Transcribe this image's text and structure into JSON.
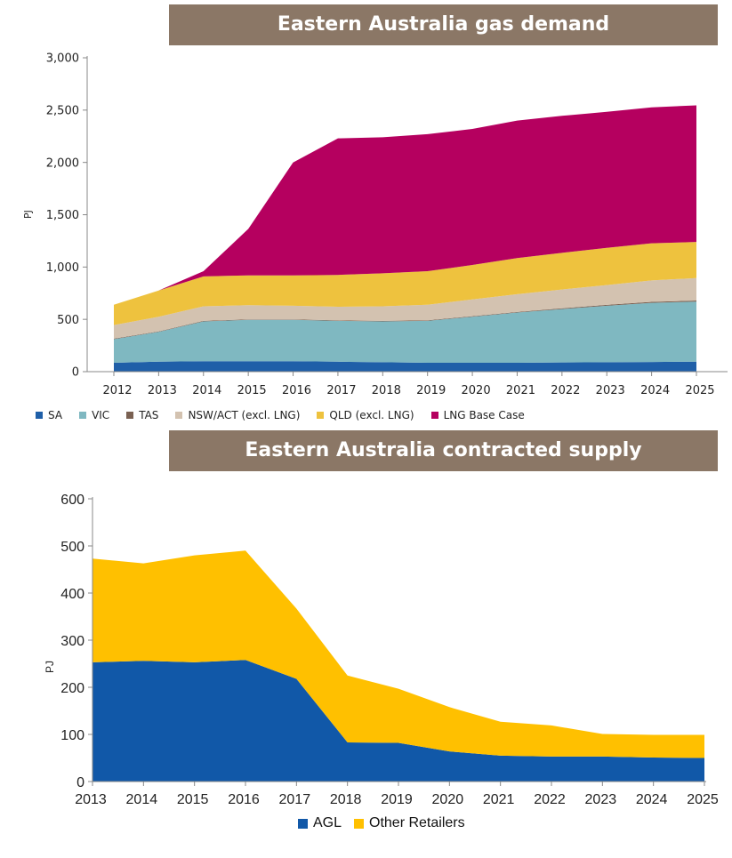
{
  "chart_data": [
    {
      "type": "area",
      "stacked": true,
      "title": "Eastern Australia gas demand",
      "ylabel": "PJ",
      "xlabel": "",
      "ylim": [
        0,
        3000
      ],
      "yticks": [
        0,
        500,
        1000,
        1500,
        2000,
        2500,
        3000
      ],
      "ytick_labels": [
        "0",
        "500",
        "1,000",
        "1,500",
        "2,000",
        "2,500",
        "3,000"
      ],
      "grid": false,
      "legend_position": "bottom",
      "categories": [
        "2012",
        "2013",
        "2014",
        "2015",
        "2016",
        "2017",
        "2018",
        "2019",
        "2020",
        "2021",
        "2022",
        "2023",
        "2024",
        "2025"
      ],
      "series": [
        {
          "name": "SA",
          "color": "#1f5fa8",
          "values": [
            85,
            95,
            100,
            100,
            100,
            95,
            90,
            85,
            85,
            85,
            88,
            90,
            93,
            95
          ]
        },
        {
          "name": "VIC",
          "color": "#7fb8c1",
          "values": [
            225,
            285,
            380,
            395,
            395,
            390,
            390,
            400,
            440,
            480,
            510,
            540,
            565,
            575
          ]
        },
        {
          "name": "TAS",
          "color": "#7a6152",
          "values": [
            5,
            5,
            5,
            5,
            5,
            5,
            5,
            5,
            5,
            5,
            7,
            8,
            9,
            10
          ]
        },
        {
          "name": "NSW/ACT (excl. LNG)",
          "color": "#d3c2b0",
          "values": [
            130,
            140,
            140,
            135,
            130,
            130,
            140,
            150,
            160,
            170,
            180,
            190,
            205,
            215
          ]
        },
        {
          "name": "QLD (excl. LNG)",
          "color": "#eec23e",
          "values": [
            195,
            250,
            285,
            285,
            290,
            305,
            315,
            320,
            330,
            345,
            350,
            355,
            355,
            345
          ]
        },
        {
          "name": "LNG Base Case",
          "color": "#b5005f",
          "values": [
            0,
            0,
            50,
            445,
            1080,
            1305,
            1300,
            1310,
            1300,
            1315,
            1310,
            1300,
            1300,
            1305
          ]
        }
      ]
    },
    {
      "type": "area",
      "stacked": true,
      "title": "Eastern Australia contracted supply",
      "ylabel": "PJ",
      "xlabel": "",
      "ylim": [
        0,
        600
      ],
      "yticks": [
        0,
        100,
        200,
        300,
        400,
        500,
        600
      ],
      "ytick_labels": [
        "0",
        "100",
        "200",
        "300",
        "400",
        "500",
        "600"
      ],
      "grid": false,
      "legend_position": "bottom",
      "categories": [
        "2013",
        "2014",
        "2015",
        "2016",
        "2017",
        "2018",
        "2019",
        "2020",
        "2021",
        "2022",
        "2023",
        "2024",
        "2025"
      ],
      "series": [
        {
          "name": "AGL",
          "color": "#1158a8",
          "values": [
            253,
            256,
            253,
            258,
            218,
            83,
            82,
            64,
            55,
            53,
            53,
            51,
            50
          ]
        },
        {
          "name": "Other Retailers",
          "color": "#ffc000",
          "values": [
            220,
            207,
            227,
            232,
            149,
            142,
            115,
            94,
            72,
            66,
            48,
            48,
            49
          ]
        }
      ]
    }
  ]
}
